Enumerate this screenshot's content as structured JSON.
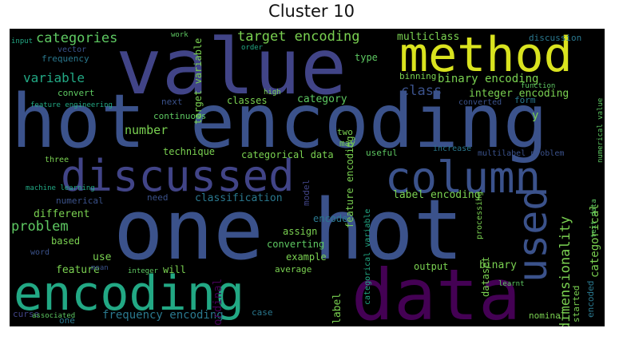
{
  "title": "Cluster 10",
  "palette": [
    "#414487",
    "#2a788e",
    "#22a884",
    "#7ad151",
    "#fde725",
    "#440154",
    "#3b528b",
    "#21918c",
    "#5ec962"
  ],
  "words": {
    "hot_encoding": "hot encoding",
    "one_hot": "one hot",
    "value": "value",
    "method": "method",
    "data": "data",
    "encoding": "encoding",
    "discussed": "discussed",
    "column": "column",
    "used": "used",
    "target_encoding": "target encoding",
    "multiclass": "multiclass",
    "discussion": "discussion",
    "categories": "categories",
    "variable": "variable",
    "binary_encoding": "binary encoding",
    "integer_encoding": "integer encoding",
    "class": "class",
    "categorical_data": "categorical data",
    "technique": "technique",
    "number": "number",
    "problem": "problem",
    "different": "different",
    "label_encoding": "label encoding",
    "dimensionality": "dimensionality",
    "categorical": "categorical",
    "frequency_encoding": "frequency encoding",
    "feature": "feature",
    "example": "example",
    "assign": "assign",
    "converting": "converting",
    "output": "output",
    "binary": "binary",
    "dataset": "dataset",
    "label": "label",
    "type": "type",
    "category": "category",
    "classes": "classes",
    "convert": "convert",
    "frequency": "frequency",
    "vector": "vector",
    "binning": "binning",
    "encode": "encode",
    "ordinal": "ordinal",
    "use": "use",
    "based": "based",
    "word": "word",
    "will": "will",
    "average": "average",
    "case": "case",
    "one": "one",
    "curse": "curse",
    "numerical": "numerical",
    "classification": "classification",
    "continuous": "continuous",
    "next": "next",
    "feature_encoding": "feature encoding",
    "target_variable": "target variable",
    "y": "y",
    "model": "model",
    "started": "started",
    "encoded": "encoded",
    "form": "form",
    "useful": "useful",
    "multilabel_problem": "multilabel problem",
    "text_data": "text data",
    "input": "input",
    "machine_learning": "machine learning",
    "may": "may",
    "need": "need",
    "two": "two",
    "converted": "converted",
    "work": "work",
    "increase": "increase",
    "processing": "processing",
    "nominal": "nominal",
    "feature_engineering": "feature engineering",
    "integer": "integer",
    "order": "order",
    "numerical_value": "numerical value",
    "function": "function",
    "high": "high",
    "three": "three",
    "learnt": "learnt",
    "categorical_variable": "categorical variable",
    "associated": "associated",
    "mean": "mean"
  }
}
